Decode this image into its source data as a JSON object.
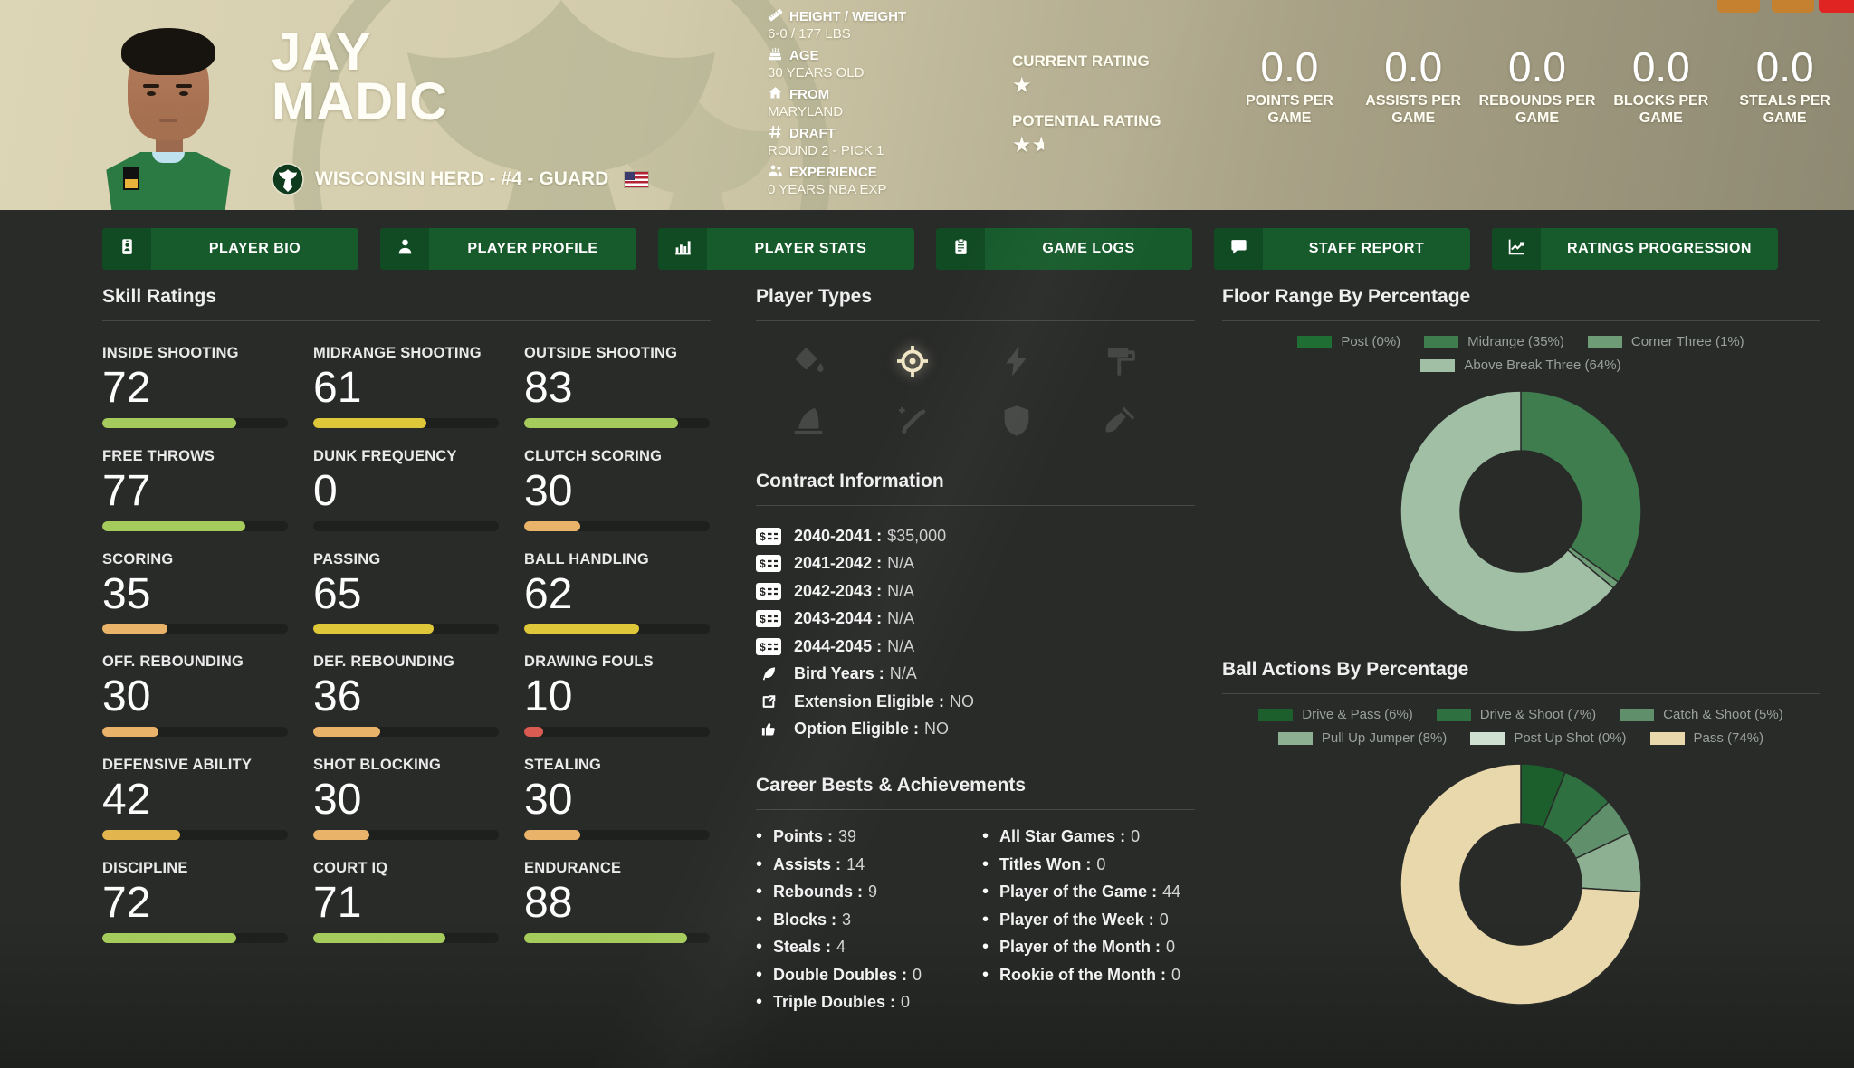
{
  "header": {
    "first_name": "JAY",
    "last_name": "MADIC",
    "team_line": "WISCONSIN HERD - #4 - GUARD",
    "info": [
      {
        "icon": "ruler-icon",
        "label": "HEIGHT / WEIGHT",
        "value": "6-0 / 177 LBS"
      },
      {
        "icon": "birthday-cake-icon",
        "label": "AGE",
        "value": "30 YEARS OLD"
      },
      {
        "icon": "home-icon",
        "label": "FROM",
        "value": "MARYLAND"
      },
      {
        "icon": "hash-icon",
        "label": "DRAFT",
        "value": "ROUND 2 - PICK 1"
      },
      {
        "icon": "people-icon",
        "label": "EXPERIENCE",
        "value": "0 YEARS NBA EXP"
      }
    ],
    "current_rating_label": "CURRENT RATING",
    "current_rating_stars": 1,
    "potential_rating_label": "POTENTIAL RATING",
    "potential_rating_stars": 1.5,
    "per_game_stats": [
      {
        "value": "0.0",
        "label": "POINTS PER GAME"
      },
      {
        "value": "0.0",
        "label": "ASSISTS PER GAME"
      },
      {
        "value": "0.0",
        "label": "REBOUNDS PER GAME"
      },
      {
        "value": "0.0",
        "label": "BLOCKS PER GAME"
      },
      {
        "value": "0.0",
        "label": "STEALS PER GAME"
      }
    ]
  },
  "window_buttons": [
    {
      "name": "window-button-1",
      "color": "#c5812f"
    },
    {
      "name": "window-button-2",
      "color": "#c5812f"
    },
    {
      "name": "window-button-close",
      "color": "#e02421"
    }
  ],
  "nav": [
    {
      "label": "PLAYER BIO",
      "icon": "id-card-icon"
    },
    {
      "label": "PLAYER PROFILE",
      "icon": "person-icon"
    },
    {
      "label": "PLAYER STATS",
      "icon": "bar-chart-icon"
    },
    {
      "label": "GAME LOGS",
      "icon": "clipboard-icon"
    },
    {
      "label": "STAFF REPORT",
      "icon": "comment-icon"
    },
    {
      "label": "RATINGS PROGRESSION",
      "icon": "line-chart-icon",
      "wide": true
    }
  ],
  "skills": {
    "title": "Skill Ratings",
    "items": [
      {
        "label": "INSIDE SHOOTING",
        "value": 72,
        "color": "#a6cb5d"
      },
      {
        "label": "MIDRANGE SHOOTING",
        "value": 61,
        "color": "#dfc73a"
      },
      {
        "label": "OUTSIDE SHOOTING",
        "value": 83,
        "color": "#a6cb5d"
      },
      {
        "label": "FREE THROWS",
        "value": 77,
        "color": "#a6cb5d"
      },
      {
        "label": "DUNK FREQUENCY",
        "value": 0,
        "color": "#a6cb5d"
      },
      {
        "label": "CLUTCH SCORING",
        "value": 30,
        "color": "#eab36a"
      },
      {
        "label": "SCORING",
        "value": 35,
        "color": "#eab36a"
      },
      {
        "label": "PASSING",
        "value": 65,
        "color": "#dfc73a"
      },
      {
        "label": "BALL HANDLING",
        "value": 62,
        "color": "#dfc73a"
      },
      {
        "label": "OFF. REBOUNDING",
        "value": 30,
        "color": "#eab36a"
      },
      {
        "label": "DEF. REBOUNDING",
        "value": 36,
        "color": "#eab36a"
      },
      {
        "label": "DRAWING FOULS",
        "value": 10,
        "color": "#d95b51"
      },
      {
        "label": "DEFENSIVE ABILITY",
        "value": 42,
        "color": "#e3b54e"
      },
      {
        "label": "SHOT BLOCKING",
        "value": 30,
        "color": "#eab36a"
      },
      {
        "label": "STEALING",
        "value": 30,
        "color": "#eab36a"
      },
      {
        "label": "DISCIPLINE",
        "value": 72,
        "color": "#a6cb5d"
      },
      {
        "label": "COURT IQ",
        "value": 71,
        "color": "#a6cb5d"
      },
      {
        "label": "ENDURANCE",
        "value": 88,
        "color": "#a6cb5d"
      }
    ]
  },
  "player_types": {
    "title": "Player Types",
    "icons": [
      {
        "name": "paint-bucket-icon",
        "active": false
      },
      {
        "name": "crosshair-target-icon",
        "active": true
      },
      {
        "name": "lightning-bolt-icon",
        "active": false
      },
      {
        "name": "paint-roller-icon",
        "active": false
      },
      {
        "name": "fin-icon",
        "active": false
      },
      {
        "name": "magic-wand-icon",
        "active": false
      },
      {
        "name": "shield-icon",
        "active": false
      },
      {
        "name": "broom-icon",
        "active": false
      }
    ]
  },
  "contract": {
    "title": "Contract Information",
    "rows": [
      {
        "icon": "money-check-icon",
        "label": "2040-2041",
        "value": "$35,000"
      },
      {
        "icon": "money-check-icon",
        "label": "2041-2042",
        "value": "N/A"
      },
      {
        "icon": "money-check-icon",
        "label": "2042-2043",
        "value": "N/A"
      },
      {
        "icon": "money-check-icon",
        "label": "2043-2044",
        "value": "N/A"
      },
      {
        "icon": "money-check-icon",
        "label": "2044-2045",
        "value": "N/A"
      },
      {
        "icon": "feather-icon",
        "label": "Bird Years",
        "value": "N/A"
      },
      {
        "icon": "external-square-icon",
        "label": "Extension Eligible",
        "value": "NO"
      },
      {
        "icon": "thumbs-up-icon",
        "label": "Option Eligible",
        "value": "NO"
      }
    ]
  },
  "career": {
    "title": "Career Bests & Achievements",
    "col1": [
      {
        "label": "Points",
        "value": "39"
      },
      {
        "label": "Assists",
        "value": "14"
      },
      {
        "label": "Rebounds",
        "value": "9"
      },
      {
        "label": "Blocks",
        "value": "3"
      },
      {
        "label": "Steals",
        "value": "4"
      },
      {
        "label": "Double Doubles",
        "value": "0"
      },
      {
        "label": "Triple Doubles",
        "value": "0"
      }
    ],
    "col2": [
      {
        "label": "All Star Games",
        "value": "0"
      },
      {
        "label": "Titles Won",
        "value": "0"
      },
      {
        "label": "Player of the Game",
        "value": "44"
      },
      {
        "label": "Player of the Week",
        "value": "0"
      },
      {
        "label": "Player of the Month",
        "value": "0"
      },
      {
        "label": "Rookie of the Month",
        "value": "0"
      }
    ]
  },
  "chart_data": [
    {
      "type": "pie",
      "title": "Floor Range By Percentage",
      "legend_position": "top",
      "donut": true,
      "segments": [
        {
          "label": "Post",
          "pct": 0,
          "color": "#1f6e33"
        },
        {
          "label": "Midrange",
          "pct": 35,
          "color": "#3f7c4e"
        },
        {
          "label": "Corner Three",
          "pct": 1,
          "color": "#6d9c77"
        },
        {
          "label": "Above Break Three",
          "pct": 64,
          "color": "#a0bfa5"
        }
      ]
    },
    {
      "type": "pie",
      "title": "Ball Actions By Percentage",
      "legend_position": "top",
      "donut": true,
      "segments": [
        {
          "label": "Drive & Pass",
          "pct": 6,
          "color": "#1c5f2d"
        },
        {
          "label": "Drive & Shoot",
          "pct": 7,
          "color": "#2f7040"
        },
        {
          "label": "Catch & Shoot",
          "pct": 5,
          "color": "#5f8f6b"
        },
        {
          "label": "Pull Up Jumper",
          "pct": 8,
          "color": "#8db093"
        },
        {
          "label": "Post Up Shot",
          "pct": 0,
          "color": "#cfe0d0"
        },
        {
          "label": "Pass",
          "pct": 74,
          "color": "#e8d8ab"
        }
      ]
    }
  ]
}
